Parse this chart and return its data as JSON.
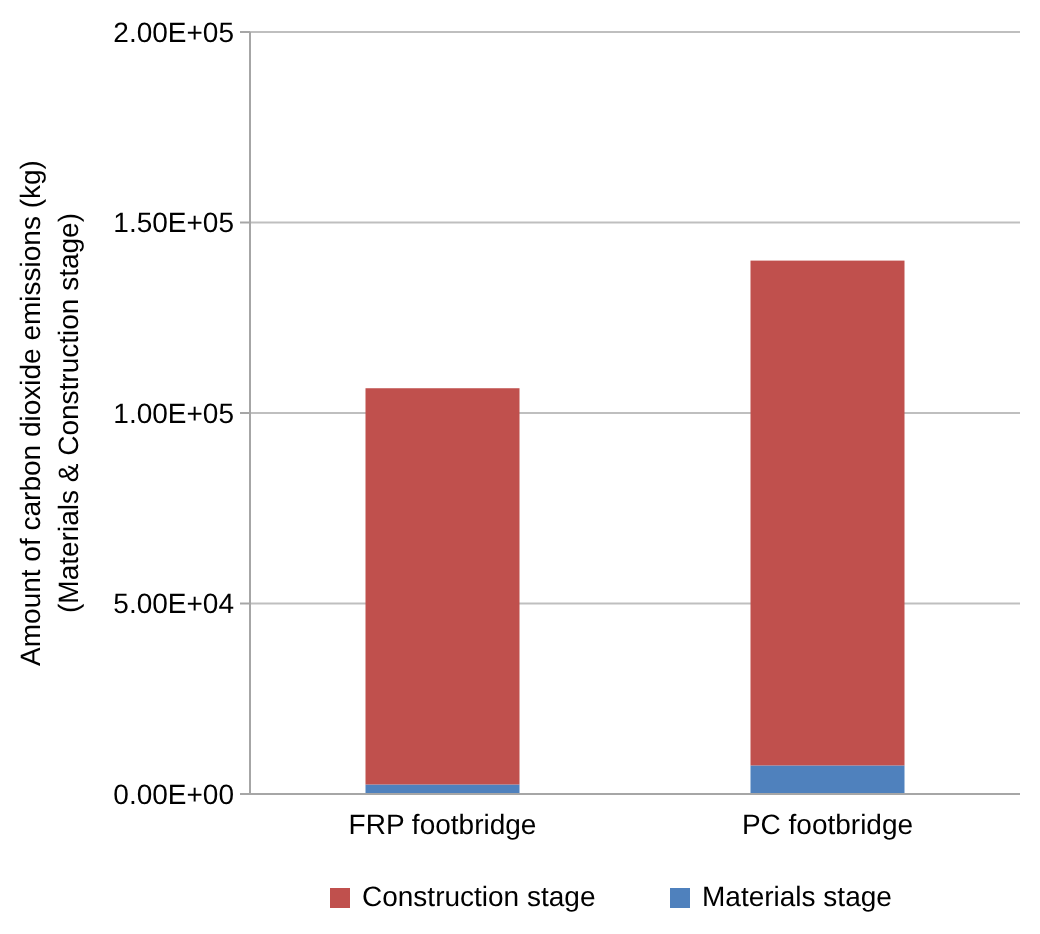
{
  "chart_data": {
    "type": "bar",
    "stacked": true,
    "categories": [
      "FRP footbridge",
      "PC footbridge"
    ],
    "series": [
      {
        "name": "Materials stage",
        "color": "#4f81bd",
        "values": [
          2500,
          7500
        ]
      },
      {
        "name": "Construction stage",
        "color": "#c0504d",
        "values": [
          104000,
          132500
        ]
      }
    ],
    "ylabel": "Amount of carbon dioxide emissions (kg)\n(Materials & Construction stage)",
    "ylim": [
      0,
      200000
    ],
    "yticks": [
      {
        "value": 0,
        "label": "0.00E+00"
      },
      {
        "value": 50000,
        "label": "5.00E+04"
      },
      {
        "value": 100000,
        "label": "1.00E+05"
      },
      {
        "value": 150000,
        "label": "1.50E+05"
      },
      {
        "value": 200000,
        "label": "2.00E+05"
      }
    ],
    "grid": "y",
    "legend": "bottom"
  }
}
